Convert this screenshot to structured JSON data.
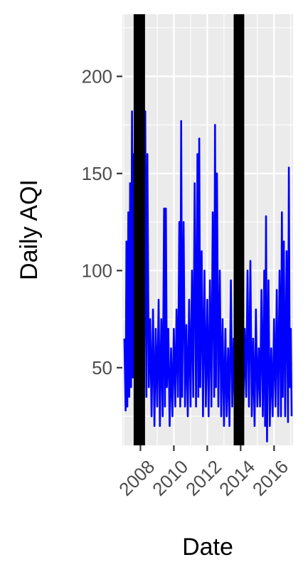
{
  "chart_data": {
    "type": "line",
    "title": "",
    "xlabel": "Date",
    "ylabel": "Daily AQI",
    "x_range": [
      "2006-12-01",
      "2017-02-20"
    ],
    "ylim": [
      10,
      232
    ],
    "x_ticks": [
      2008,
      2010,
      2012,
      2014,
      2016
    ],
    "y_ticks": [
      50,
      100,
      150,
      200
    ],
    "grid": true,
    "legend": "none",
    "series": [
      {
        "color": "#0000ff",
        "points": [
          [
            "2007-01-15",
            65
          ],
          [
            "2007-02-10",
            28
          ],
          [
            "2007-03-01",
            115
          ],
          [
            "2007-03-20",
            30
          ],
          [
            "2007-04-10",
            130
          ],
          [
            "2007-05-01",
            35
          ],
          [
            "2007-05-20",
            145
          ],
          [
            "2007-06-10",
            40
          ],
          [
            "2007-07-01",
            182
          ],
          [
            "2007-07-20",
            45
          ],
          [
            "2007-08-10",
            160
          ],
          [
            "2007-08-25",
            55
          ],
          [
            "2007-09-05",
            222
          ],
          [
            "2007-09-20",
            60
          ],
          [
            "2007-10-01",
            210
          ],
          [
            "2007-10-15",
            70
          ],
          [
            "2007-11-01",
            180
          ],
          [
            "2007-11-15",
            65
          ],
          [
            "2007-12-01",
            200
          ],
          [
            "2007-12-20",
            80
          ],
          [
            "2008-01-10",
            150
          ],
          [
            "2008-02-01",
            60
          ],
          [
            "2008-03-01",
            190
          ],
          [
            "2008-03-20",
            40
          ],
          [
            "2008-04-15",
            182
          ],
          [
            "2008-05-10",
            35
          ],
          [
            "2008-06-01",
            160
          ],
          [
            "2008-07-01",
            40
          ],
          [
            "2008-08-01",
            75
          ],
          [
            "2008-09-01",
            25
          ],
          [
            "2008-10-01",
            80
          ],
          [
            "2008-11-01",
            20
          ],
          [
            "2008-12-01",
            70
          ],
          [
            "2009-01-01",
            30
          ],
          [
            "2009-02-01",
            85
          ],
          [
            "2009-03-01",
            20
          ],
          [
            "2009-04-01",
            75
          ],
          [
            "2009-05-01",
            25
          ],
          [
            "2009-06-01",
            132
          ],
          [
            "2009-06-20",
            30
          ],
          [
            "2009-07-10",
            132
          ],
          [
            "2009-08-01",
            40
          ],
          [
            "2009-09-01",
            70
          ],
          [
            "2009-10-01",
            20
          ],
          [
            "2009-11-01",
            60
          ],
          [
            "2009-12-01",
            25
          ],
          [
            "2010-01-01",
            70
          ],
          [
            "2010-02-01",
            30
          ],
          [
            "2010-03-01",
            80
          ],
          [
            "2010-04-01",
            35
          ],
          [
            "2010-05-01",
            125
          ],
          [
            "2010-05-20",
            30
          ],
          [
            "2010-06-10",
            177
          ],
          [
            "2010-07-01",
            35
          ],
          [
            "2010-08-01",
            125
          ],
          [
            "2010-09-01",
            30
          ],
          [
            "2010-10-01",
            72
          ],
          [
            "2010-11-01",
            25
          ],
          [
            "2010-12-01",
            85
          ],
          [
            "2011-01-01",
            30
          ],
          [
            "2011-02-01",
            100
          ],
          [
            "2011-03-01",
            35
          ],
          [
            "2011-04-01",
            145
          ],
          [
            "2011-05-01",
            30
          ],
          [
            "2011-06-01",
            160
          ],
          [
            "2011-06-20",
            35
          ],
          [
            "2011-07-10",
            168
          ],
          [
            "2011-08-01",
            40
          ],
          [
            "2011-09-01",
            110
          ],
          [
            "2011-10-01",
            25
          ],
          [
            "2011-11-01",
            100
          ],
          [
            "2011-12-01",
            30
          ],
          [
            "2012-01-01",
            85
          ],
          [
            "2012-02-01",
            25
          ],
          [
            "2012-03-01",
            95
          ],
          [
            "2012-04-01",
            30
          ],
          [
            "2012-05-01",
            130
          ],
          [
            "2012-06-01",
            35
          ],
          [
            "2012-06-20",
            175
          ],
          [
            "2012-07-10",
            40
          ],
          [
            "2012-08-01",
            150
          ],
          [
            "2012-09-01",
            30
          ],
          [
            "2012-10-01",
            100
          ],
          [
            "2012-11-01",
            25
          ],
          [
            "2012-12-01",
            75
          ],
          [
            "2013-01-01",
            20
          ],
          [
            "2013-02-01",
            70
          ],
          [
            "2013-03-01",
            25
          ],
          [
            "2013-04-01",
            60
          ],
          [
            "2013-05-01",
            20
          ],
          [
            "2013-06-01",
            95
          ],
          [
            "2013-07-01",
            30
          ],
          [
            "2013-08-01",
            65
          ],
          [
            "2013-09-01",
            20
          ],
          [
            "2013-10-01",
            60
          ],
          [
            "2013-11-01",
            30
          ],
          [
            "2013-12-01",
            75
          ],
          [
            "2014-01-01",
            25
          ],
          [
            "2014-02-01",
            65
          ],
          [
            "2014-03-01",
            30
          ],
          [
            "2014-04-01",
            70
          ],
          [
            "2014-05-01",
            35
          ],
          [
            "2014-06-01",
            100
          ],
          [
            "2014-07-01",
            30
          ],
          [
            "2014-08-01",
            105
          ],
          [
            "2014-09-01",
            25
          ],
          [
            "2014-10-01",
            65
          ],
          [
            "2014-11-01",
            20
          ],
          [
            "2014-12-01",
            80
          ],
          [
            "2015-01-01",
            30
          ],
          [
            "2015-02-01",
            60
          ],
          [
            "2015-03-01",
            30
          ],
          [
            "2015-04-01",
            90
          ],
          [
            "2015-05-01",
            25
          ],
          [
            "2015-06-01",
            100
          ],
          [
            "2015-06-20",
            20
          ],
          [
            "2015-07-10",
            128
          ],
          [
            "2015-08-01",
            12
          ],
          [
            "2015-09-01",
            95
          ],
          [
            "2015-10-01",
            20
          ],
          [
            "2015-11-01",
            60
          ],
          [
            "2015-12-01",
            25
          ],
          [
            "2016-01-01",
            75
          ],
          [
            "2016-02-01",
            30
          ],
          [
            "2016-03-01",
            90
          ],
          [
            "2016-04-01",
            25
          ],
          [
            "2016-05-01",
            100
          ],
          [
            "2016-06-01",
            25
          ],
          [
            "2016-06-20",
            130
          ],
          [
            "2016-07-10",
            35
          ],
          [
            "2016-08-01",
            115
          ],
          [
            "2016-09-01",
            25
          ],
          [
            "2016-10-01",
            110
          ],
          [
            "2016-11-01",
            22
          ],
          [
            "2016-11-20",
            153
          ],
          [
            "2016-12-10",
            40
          ],
          [
            "2017-01-01",
            70
          ],
          [
            "2017-01-20",
            25
          ]
        ]
      }
    ],
    "vertical_bands": [
      {
        "from": "2007-08-05",
        "to": "2008-04-10",
        "color": "#000000"
      },
      {
        "from": "2013-08-01",
        "to": "2014-03-20",
        "color": "#000000"
      }
    ]
  }
}
